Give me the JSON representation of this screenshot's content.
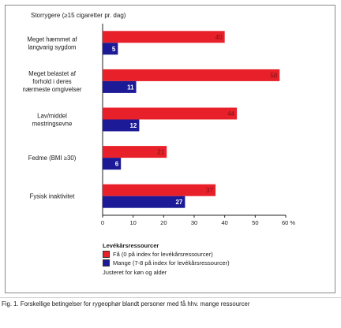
{
  "chart_data": {
    "type": "bar",
    "title": "Storrygere (≥15 cigaretter pr. dag)",
    "categories": [
      [
        "Meget hæmmet af",
        "langvarig sygdom"
      ],
      [
        "Meget belastet af",
        "forhold i deres",
        "nærmeste omgivelser"
      ],
      [
        "Lav/middel",
        "mestringsevne"
      ],
      [
        "Fedme (BMI ≥30)"
      ],
      [
        "Fysisk inaktivitet"
      ]
    ],
    "series": [
      {
        "name": "Få (0 på index for levékårsressourcer)",
        "color": "#e8202a",
        "values": [
          40,
          58,
          44,
          21,
          37
        ]
      },
      {
        "name": "Mange (7-8 på index for levékårsressourcer)",
        "color": "#1c1a96",
        "values": [
          5,
          11,
          12,
          6,
          27
        ]
      }
    ],
    "xlim": [
      0,
      60
    ],
    "xticks": [
      "0",
      "10",
      "20",
      "30",
      "40",
      "50",
      "60 %"
    ],
    "grid": false,
    "legend_title": "Levékårsressourcer",
    "note": "Justeret for køn og alder"
  },
  "caption": "Fig. 1. Forskellige betingelser for rygeophør blandt personer med få hhv. mange ressourcer"
}
